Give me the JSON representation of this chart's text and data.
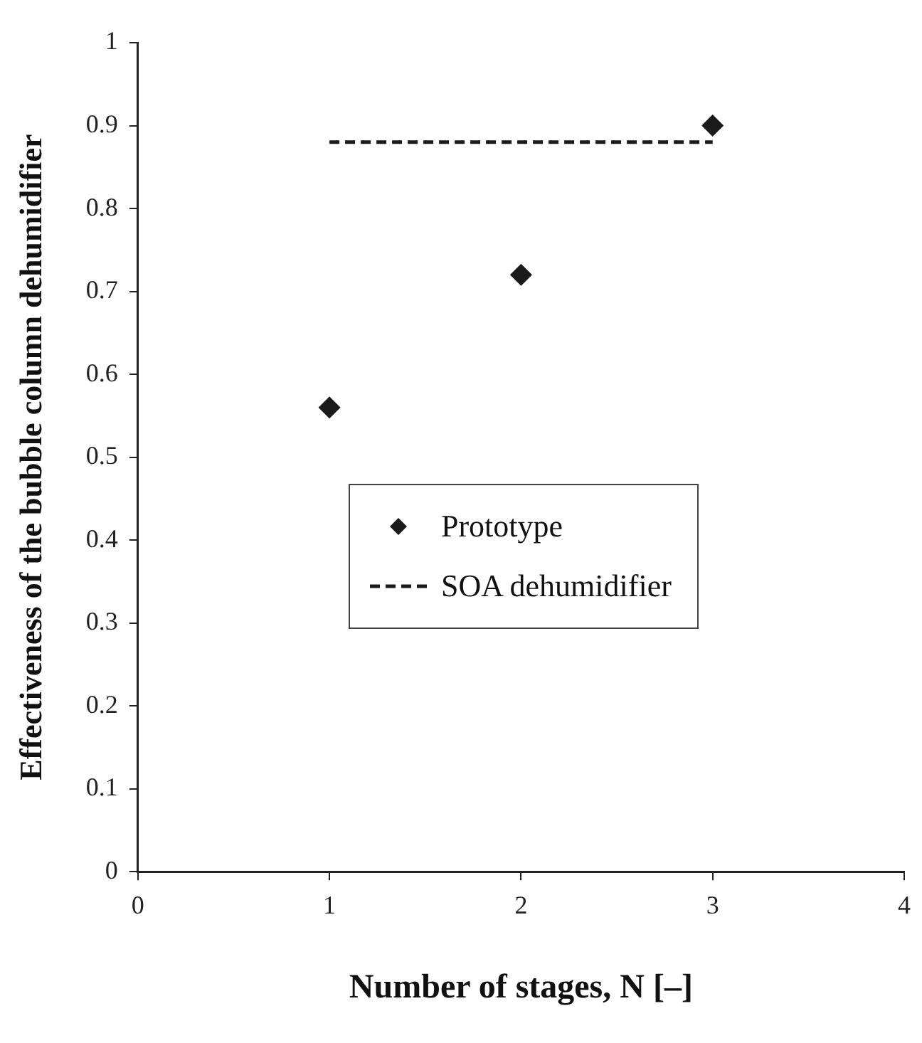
{
  "chart_data": {
    "type": "scatter",
    "xlabel": "Number of stages, N [‒]",
    "ylabel": "Effectiveness of the bubble column dehumidifier",
    "xlim": [
      0,
      4
    ],
    "xticks": [
      0,
      1,
      2,
      3,
      4
    ],
    "ylim": [
      0,
      1
    ],
    "yticks": [
      0,
      0.1,
      0.2,
      0.3,
      0.4,
      0.5,
      0.6,
      0.7,
      0.8,
      0.9,
      1
    ],
    "grid": false,
    "legend": "bottom",
    "series": [
      {
        "name": "Prototype",
        "type": "scatter",
        "color": "#1a1a1a",
        "marker": "diamond",
        "x": [
          1,
          2,
          3
        ],
        "values": [
          0.56,
          0.72,
          0.9
        ]
      },
      {
        "name": "SOA dehumidifier",
        "type": "line",
        "color": "#1a1a1a",
        "marker": "none",
        "line_style": "dashed",
        "x": [
          1,
          3
        ],
        "values": [
          0.88,
          0.88
        ]
      }
    ]
  }
}
